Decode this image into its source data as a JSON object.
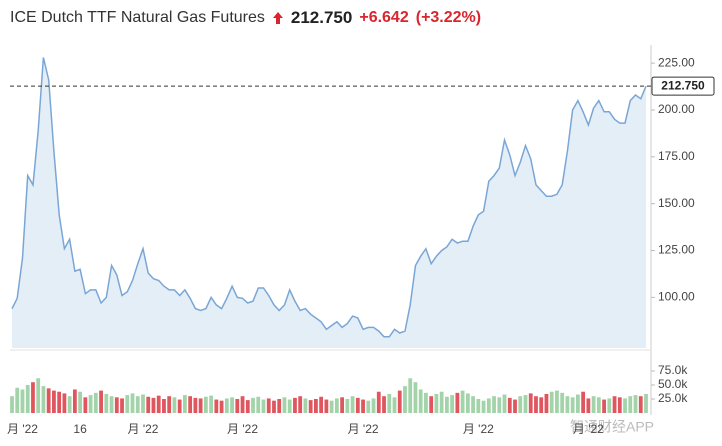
{
  "chart_data": {
    "type": "line",
    "title": "ICE Dutch TTF Natural Gas Futures",
    "last_price": "212.750",
    "change": "+6.642",
    "change_pct": "(+3.22%)",
    "watermark": "智通财经APP",
    "color": "#7aa6d6",
    "area_color": "#e4eef7",
    "up_color": "#a3d4a9",
    "down_color": "#e0565e",
    "change_color": "#d9262e",
    "categories": [
      null,
      null,
      "月 '22",
      null,
      null,
      null,
      null,
      null,
      null,
      null,
      null,
      null,
      null,
      "16",
      null,
      null,
      null,
      null,
      null,
      null,
      null,
      null,
      null,
      null,
      null,
      "月 '22",
      null,
      null,
      null,
      null,
      null,
      null,
      null,
      null,
      null,
      null,
      null,
      null,
      null,
      null,
      null,
      null,
      null,
      null,
      "月 '22",
      null,
      null,
      null,
      null,
      null,
      null,
      null,
      null,
      null,
      null,
      null,
      null,
      null,
      null,
      null,
      null,
      null,
      null,
      null,
      null,
      null,
      null,
      "月 '22",
      null,
      null,
      null,
      null,
      null,
      null,
      null,
      null,
      null,
      null,
      null,
      null,
      null,
      null,
      null,
      null,
      null,
      null,
      null,
      null,
      null,
      "月 '22",
      null,
      null,
      null,
      null,
      null,
      null,
      null,
      null,
      null,
      null,
      null,
      null,
      null,
      null,
      null,
      null,
      null,
      null,
      null,
      null,
      "月 '22",
      null,
      null,
      null,
      null,
      null,
      null,
      null,
      null,
      null,
      null,
      null
    ],
    "values": [
      94,
      99.5,
      121,
      165,
      160,
      189,
      228,
      216,
      178,
      144,
      126,
      131,
      114,
      115,
      102,
      104,
      104,
      97,
      100,
      117,
      112,
      101,
      103,
      109,
      118,
      126,
      113,
      110,
      109,
      106,
      104,
      104,
      101,
      104,
      99.5,
      94,
      93,
      94,
      100,
      96,
      94,
      99.5,
      106,
      100,
      99.5,
      97,
      98,
      105,
      105,
      101,
      96,
      93,
      96,
      104,
      98,
      93,
      94,
      91,
      89,
      87,
      83,
      85,
      87,
      84,
      86,
      90,
      89,
      83,
      84,
      84,
      82,
      79,
      79,
      83,
      81,
      82,
      96,
      117,
      122,
      126,
      118,
      122,
      125,
      127,
      131,
      129,
      130,
      130,
      138,
      144,
      146,
      162,
      165,
      169,
      184,
      176,
      165,
      172,
      181,
      174,
      160,
      157,
      154,
      154,
      155,
      160,
      178,
      200,
      205,
      199,
      192,
      201,
      205,
      199,
      199,
      195,
      193,
      193,
      205,
      208,
      206,
      212.75
    ],
    "ylim": [
      73,
      232
    ],
    "yticks": [
      {
        "value": 100,
        "label": "100.00"
      },
      {
        "value": 125,
        "label": "125.00"
      },
      {
        "value": 150,
        "label": "150.00"
      },
      {
        "value": 175,
        "label": "175.00"
      },
      {
        "value": 200,
        "label": "200.00"
      },
      {
        "value": 225,
        "label": "225.00"
      }
    ],
    "volume": [
      30000,
      45000,
      42000,
      50000,
      55000,
      62000,
      48000,
      44000,
      40000,
      38000,
      35000,
      30000,
      42000,
      38000,
      28000,
      32000,
      36000,
      40000,
      34000,
      30000,
      28000,
      26000,
      32000,
      35000,
      30000,
      33000,
      29000,
      27000,
      31000,
      25000,
      30000,
      28000,
      24000,
      32000,
      30000,
      27000,
      26000,
      29000,
      31000,
      24000,
      22000,
      26000,
      28000,
      25000,
      30000,
      23000,
      27000,
      29000,
      24000,
      26000,
      22000,
      25000,
      28000,
      24000,
      27000,
      30000,
      26000,
      23000,
      25000,
      29000,
      24000,
      22000,
      26000,
      28000,
      25000,
      30000,
      27000,
      24000,
      22000,
      26000,
      38000,
      30000,
      34000,
      28000,
      40000,
      48000,
      62000,
      55000,
      42000,
      36000,
      30000,
      34000,
      38000,
      29000,
      32000,
      36000,
      40000,
      35000,
      30000,
      25000,
      22000,
      26000,
      30000,
      28000,
      33000,
      27000,
      24000,
      30000,
      32000,
      35000,
      30000,
      28000,
      34000,
      38000,
      40000,
      36000,
      30000,
      28000,
      33000,
      38000,
      26000,
      30000,
      28000,
      24000,
      26000,
      30000,
      28000,
      26000,
      30000,
      32000,
      30000,
      34000
    ],
    "y2lim": [
      0,
      100000
    ],
    "y2ticks": [
      {
        "value": 25000,
        "label": "25.0k"
      },
      {
        "value": 50000,
        "label": "50.0k"
      },
      {
        "value": 75000,
        "label": "75.0k"
      }
    ]
  }
}
